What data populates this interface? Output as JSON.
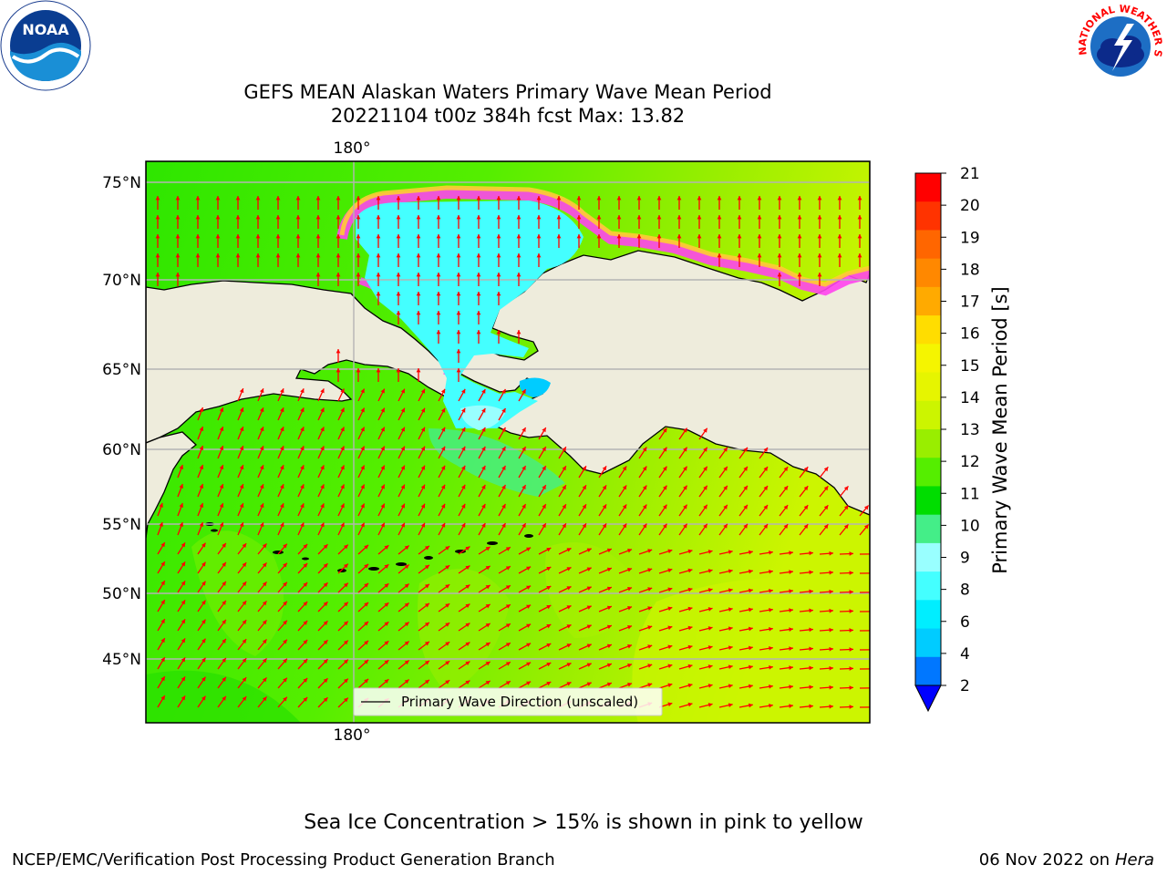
{
  "title": {
    "line1": "GEFS MEAN Alaskan Waters Primary Wave Mean Period",
    "line2": "20221104 t00z 384h fcst   Max: 13.82"
  },
  "map": {
    "lon_label_top": "180°",
    "lon_label_bottom": "180°",
    "lat_labels": [
      "75°N",
      "70°N",
      "65°N",
      "60°N",
      "55°N",
      "50°N",
      "45°N"
    ],
    "legend_text": "Primary Wave Direction (unscaled)",
    "colors": {
      "land": "#eeecdc",
      "coast": "#000000",
      "gridline": "#b4b4b4",
      "arrow": "#ff0000",
      "ice_pink": "#ff44ee",
      "ice_yellow": "#ffcc33"
    }
  },
  "colorbar": {
    "label": "Primary Wave Mean Period [s]",
    "ticks": [
      "21",
      "20",
      "19",
      "18",
      "17",
      "16",
      "15",
      "14",
      "13",
      "12",
      "11",
      "10",
      "9",
      "8",
      "6",
      "4",
      "2"
    ],
    "colors": [
      "#ff0000",
      "#ff3300",
      "#ff6600",
      "#ff8800",
      "#ffaa00",
      "#ffdd00",
      "#f5f500",
      "#e6f500",
      "#ccf500",
      "#99ee00",
      "#55ee00",
      "#00dd00",
      "#44ee88",
      "#99ffff",
      "#44ffff",
      "#00eeff",
      "#00ccff",
      "#0077ff",
      "#0000ff"
    ]
  },
  "footer": {
    "note": "Sea Ice Concentration > 15% is shown in pink to yellow",
    "left": "NCEP/EMC/Verification Post Processing Product Generation Branch",
    "right_date": "06 Nov 2022 on",
    "right_system": "Hera"
  },
  "logos": {
    "noaa_text": "NOAA",
    "nws_text": "NATIONAL WEATHER SERVICE"
  }
}
